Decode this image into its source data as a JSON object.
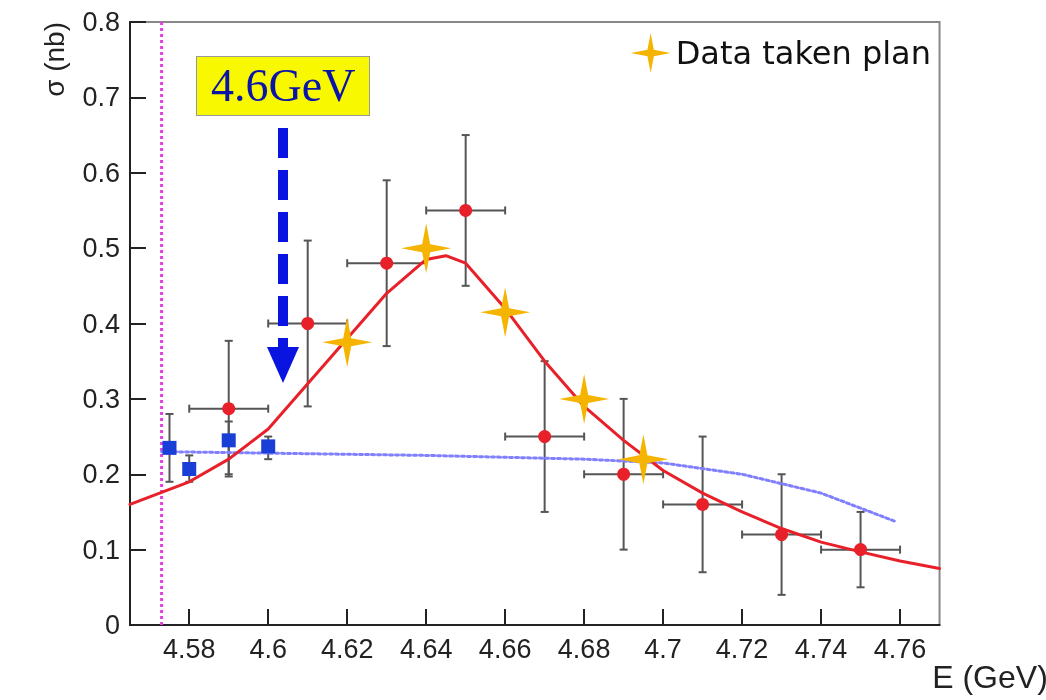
{
  "chart_data": {
    "type": "scatter",
    "xlabel": "E (GeV)",
    "ylabel": "σ (nb)",
    "xlim": [
      4.565,
      4.77
    ],
    "xticks": [
      4.58,
      4.6,
      4.62,
      4.64,
      4.66,
      4.68,
      4.7,
      4.72,
      4.74,
      4.76
    ],
    "ylim": [
      0,
      0.8
    ],
    "yticks": [
      0,
      0.1,
      0.2,
      0.3,
      0.4,
      0.5,
      0.6,
      0.7,
      0.8
    ],
    "grid": false,
    "legend": "top right",
    "annotations": [
      "4.6GeV"
    ],
    "ref_lines": [
      {
        "axis": "x",
        "value": 4.573,
        "color": "#e040e0",
        "line_style": "dotted"
      }
    ],
    "series": [
      {
        "type": "line",
        "color": "#8080ff",
        "line_style": "dotted",
        "marker": "none",
        "x": [
          4.573,
          4.6,
          4.64,
          4.68,
          4.7,
          4.72,
          4.74,
          4.759
        ],
        "values": [
          0.23,
          0.228,
          0.225,
          0.22,
          0.215,
          0.2,
          0.175,
          0.137
        ]
      },
      {
        "type": "line",
        "color": "#e8202a",
        "line_style": "solid",
        "marker": "none",
        "x": [
          4.565,
          4.58,
          4.59,
          4.6,
          4.61,
          4.62,
          4.63,
          4.64,
          4.645,
          4.65,
          4.66,
          4.67,
          4.68,
          4.69,
          4.7,
          4.71,
          4.72,
          4.73,
          4.74,
          4.75,
          4.76,
          4.77
        ],
        "values": [
          0.16,
          0.19,
          0.22,
          0.26,
          0.32,
          0.38,
          0.44,
          0.485,
          0.49,
          0.48,
          0.42,
          0.35,
          0.29,
          0.245,
          0.205,
          0.175,
          0.15,
          0.128,
          0.11,
          0.097,
          0.085,
          0.075
        ]
      },
      {
        "color": "#1a3fd6",
        "marker": "square",
        "x": [
          4.575,
          4.58,
          4.59,
          4.6
        ],
        "values": [
          0.235,
          0.207,
          0.245,
          0.237
        ],
        "errors": [
          [
            0.19,
            0.28
          ],
          [
            0.19,
            0.225
          ],
          [
            0.2,
            0.27
          ],
          [
            0.22,
            0.25
          ]
        ]
      },
      {
        "color": "#e8202a",
        "marker": "circle",
        "x": [
          4.59,
          4.61,
          4.63,
          4.65,
          4.67,
          4.69,
          4.71,
          4.73,
          4.75
        ],
        "values": [
          0.287,
          0.4,
          0.48,
          0.55,
          0.25,
          0.2,
          0.16,
          0.12,
          0.1
        ],
        "errors": [
          0.09,
          0.11,
          0.11,
          0.1,
          0.1,
          0.1,
          0.09,
          0.08,
          0.05
        ],
        "xerrors": [
          0.01,
          0.01,
          0.01,
          0.01,
          0.01,
          0.01,
          0.01,
          0.01,
          0.01
        ]
      },
      {
        "name": "Data taken plan",
        "color": "#f5b400",
        "marker": "star",
        "x": [
          4.62,
          4.64,
          4.66,
          4.68,
          4.695
        ],
        "values": [
          0.375,
          0.5,
          0.415,
          0.3,
          0.22
        ]
      }
    ]
  }
}
